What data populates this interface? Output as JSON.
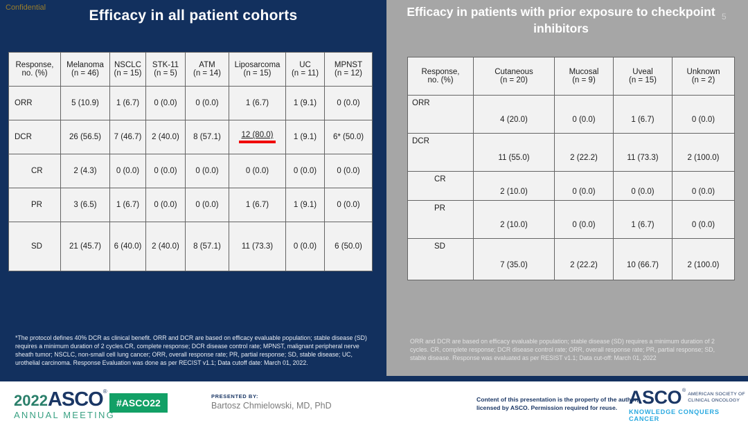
{
  "slide": {
    "confidential": "Confidential",
    "page_number": "5",
    "colors": {
      "navy_background": "#12305e",
      "gray_panel": "#a6a6a6",
      "table_cell_background": "#f2f2f2",
      "table_border": "#636363",
      "red_underline": "#f00a0a",
      "confidential_gold": "#9a7d2b",
      "asco_navy": "#1b3765",
      "asco_green": "#2a7f6a",
      "badge_green": "#12a066",
      "tagline_blue": "#29a9e0"
    },
    "left": {
      "title": "Efficacy in all patient cohorts",
      "table": {
        "header": [
          "Response,\nno. (%)",
          "Melanoma\n(n = 46)",
          "NSCLC\n(n = 15)",
          "STK-11\n(n = 5)",
          "ATM\n(n = 14)",
          "Liposarcoma\n(n = 15)",
          "UC\n(n = 11)",
          "MPNST\n(n = 12)"
        ],
        "rows": [
          {
            "label": "ORR",
            "indent": false,
            "cells": [
              "5 (10.9)",
              "1 (6.7)",
              "0 (0.0)",
              "0 (0.0)",
              "1 (6.7)",
              "1 (9.1)",
              "0 (0.0)"
            ]
          },
          {
            "label": "DCR",
            "indent": false,
            "underline_cell": 4,
            "cells": [
              "26 (56.5)",
              "7 (46.7)",
              "2 (40.0)",
              "8 (57.1)",
              "12 (80.0)",
              "1 (9.1)",
              "6* (50.0)"
            ]
          },
          {
            "label": "CR",
            "indent": true,
            "cells": [
              "2 (4.3)",
              "0 (0.0)",
              "0 (0.0)",
              "0 (0.0)",
              "0 (0.0)",
              "0 (0.0)",
              "0 (0.0)"
            ]
          },
          {
            "label": "PR",
            "indent": true,
            "cells": [
              "3 (6.5)",
              "1 (6.7)",
              "0 (0.0)",
              "0 (0.0)",
              "1 (6.7)",
              "1 (9.1)",
              "0 (0.0)"
            ]
          },
          {
            "label": "SD",
            "indent": true,
            "cells": [
              "21 (45.7)",
              "6 (40.0)",
              "2 (40.0)",
              "8 (57.1)",
              "11 (73.3)",
              "0 (0.0)",
              "6 (50.0)"
            ]
          }
        ]
      },
      "footnote": "*The protocol defines 40% DCR as clinical benefit. ORR and DCR are based on efficacy evaluable population; stable disease (SD) requires a minimum duration of 2 cycles.CR, complete response; DCR disease control rate; MPNST, malignant peripheral nerve sheath tumor; NSCLC, non-small cell lung cancer; ORR, overall response rate; PR, partial response; SD, stable disease; UC, urothelial carcinoma. Response Evaluation was done as per RECIST v1.1; Data cutoff date: March 01, 2022."
    },
    "right": {
      "title": "Efficacy in patients with prior exposure to checkpoint inhibitors",
      "table": {
        "header": [
          "Response,\nno. (%)",
          "Cutaneous\n(n = 20)",
          "Mucosal\n(n = 9)",
          "Uveal\n(n = 15)",
          "Unknown\n(n = 2)"
        ],
        "rows": [
          {
            "label": "ORR",
            "indent": false,
            "cells": [
              "4 (20.0)",
              "0 (0.0)",
              "1 (6.7)",
              "0 (0.0)"
            ]
          },
          {
            "label": "DCR",
            "indent": false,
            "cells": [
              "11 (55.0)",
              "2 (22.2)",
              "11 (73.3)",
              "2 (100.0)"
            ]
          },
          {
            "label": "CR",
            "indent": true,
            "cells": [
              "2 (10.0)",
              "0 (0.0)",
              "0 (0.0)",
              "0 (0.0)"
            ]
          },
          {
            "label": "PR",
            "indent": true,
            "cells": [
              "2 (10.0)",
              "0 (0.0)",
              "1 (6.7)",
              "0 (0.0)"
            ]
          },
          {
            "label": "SD",
            "indent": true,
            "cells": [
              "7 (35.0)",
              "2 (22.2)",
              "10 (66.7)",
              "2 (100.0)"
            ]
          }
        ]
      },
      "footnote": "ORR and DCR are based on efficacy evaluable population; stable disease (SD) requires a minimum duration of 2 cycles. CR, complete response; DCR disease control rate; ORR, overall response rate; PR, partial response; SD, stable disease. Response was evaluated as per RESIST v1.1; Data cut-off: March 01, 2022"
    },
    "footer": {
      "logo_year": "2022",
      "logo_asco": "ASCO",
      "logo_reg": "®",
      "logo_annual": "ANNUAL MEETING",
      "hashtag": "#ASCO22",
      "presented_by_label": "PRESENTED BY:",
      "presenter": "Bartosz Chmielowski, MD, PhD",
      "copyright": "Content of this presentation is the property of the author, licensed by ASCO. Permission required for reuse.",
      "asco_org_name": "ASCO",
      "asco_org_reg": "®",
      "asco_org_society": "AMERICAN SOCIETY OF\nCLINICAL ONCOLOGY",
      "asco_org_tagline": "KNOWLEDGE CONQUERS CANCER"
    }
  }
}
